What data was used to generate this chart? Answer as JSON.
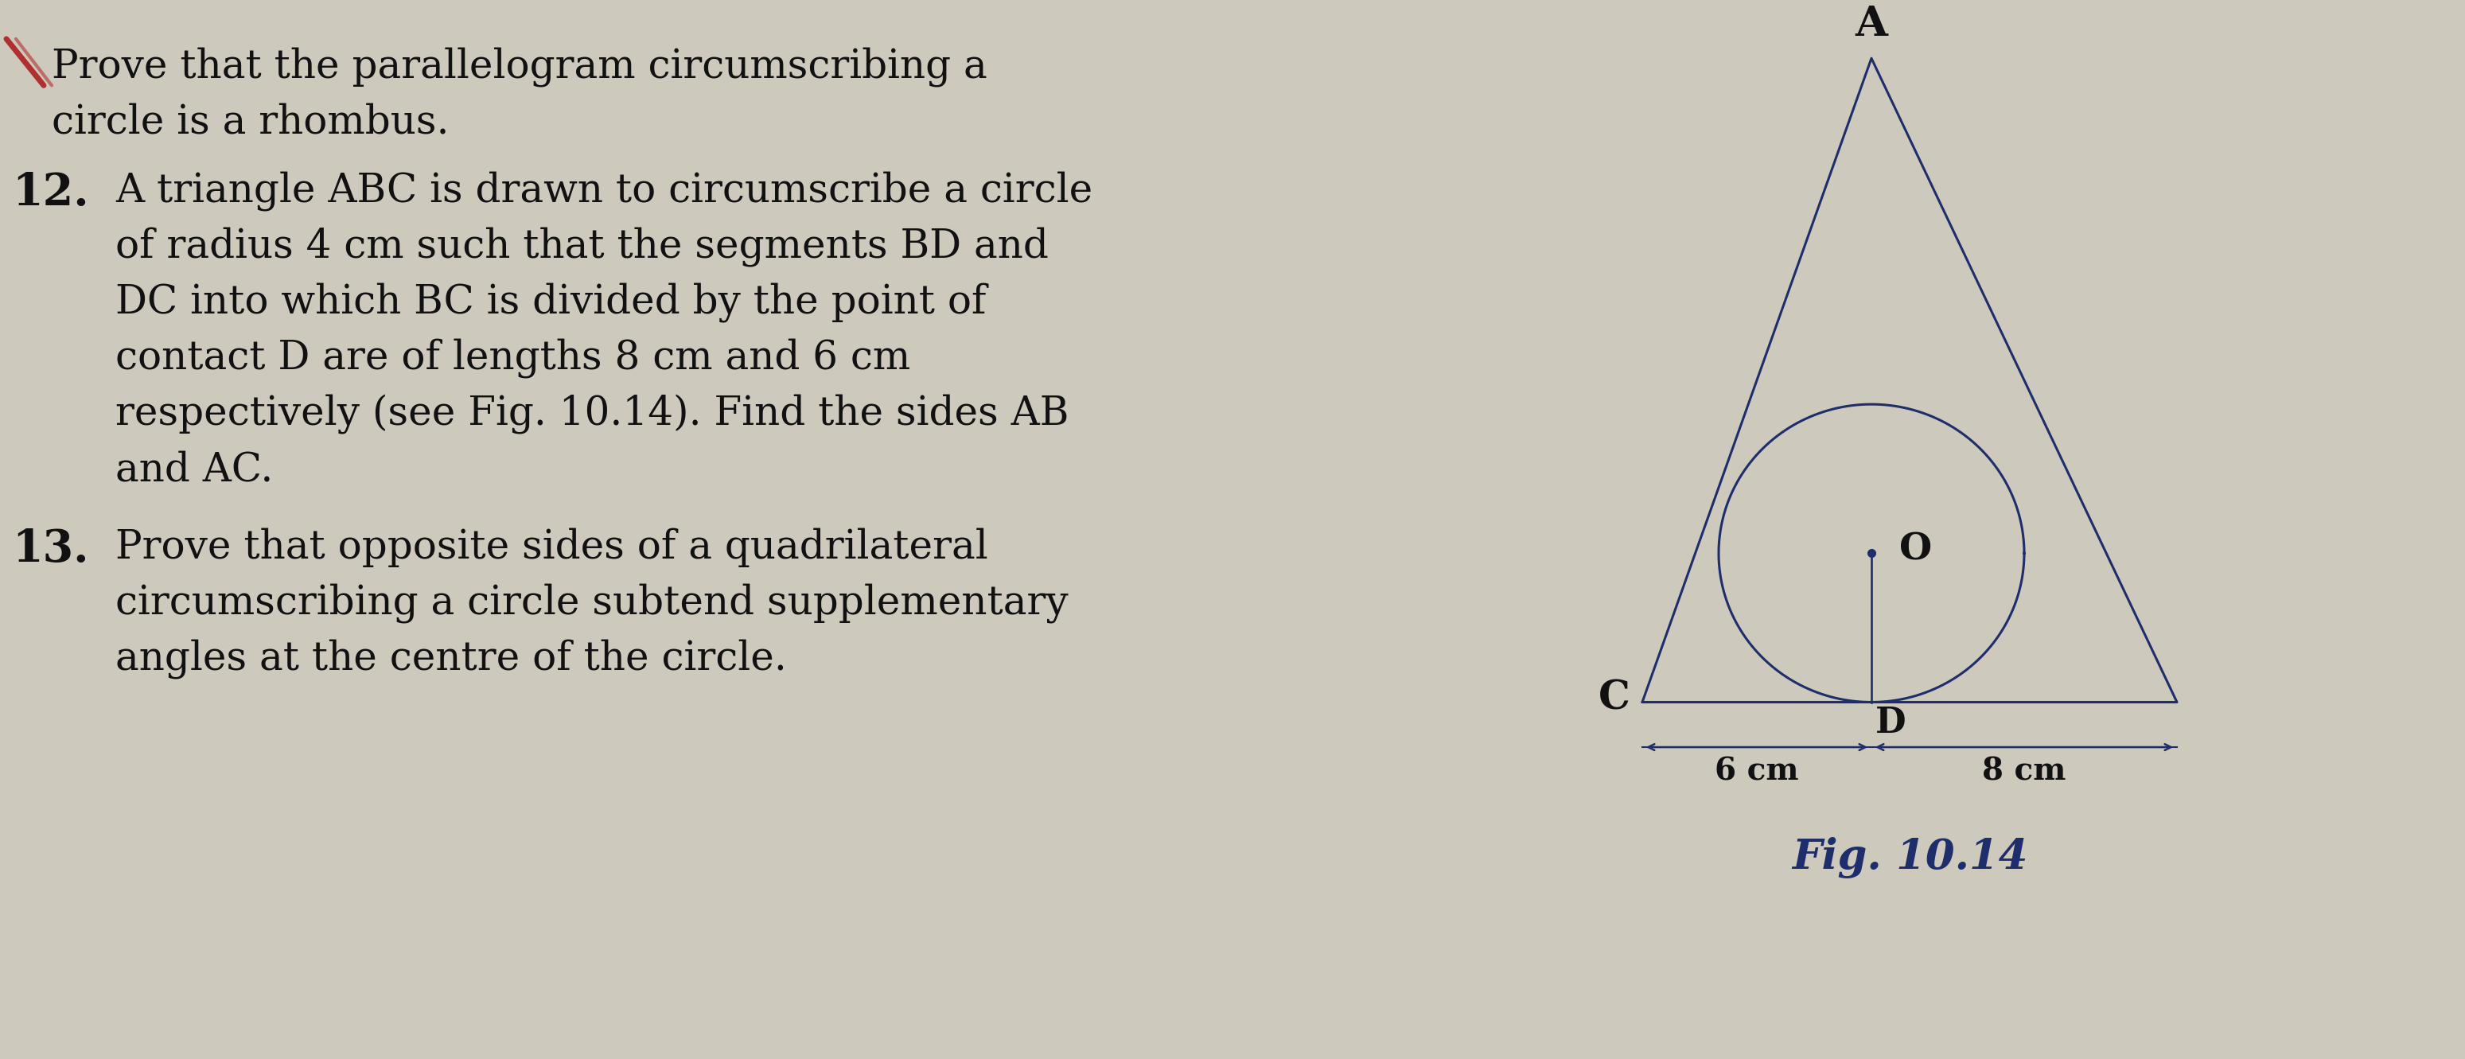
{
  "bg_color": "#cdc9bc",
  "text_color": "#111111",
  "fig_width": 30.98,
  "fig_height": 13.31,
  "line_color": "#1e2d6b",
  "fig_label": "Fig. 10.14",
  "font_size_body": 36,
  "font_size_num": 40,
  "font_size_label_geom": 34,
  "font_size_fig": 34,
  "font_size_dim": 28,
  "red_line_color": "#b03030",
  "problem11_line1": "Prove that the parallelogram circumscribing a",
  "problem11_line2": "circle is a rhombus.",
  "p12_num": "12.",
  "p12_l1": "A triangle ABC is drawn to circumscribe a circle",
  "p12_l2": "of radius 4 cm such that the segments BD and",
  "p12_l3": "DC into which BC is divided by the point of",
  "p12_l4": "contact D are of lengths 8 cm and 6 cm",
  "p12_l5": "respectively (see Fig. 10.14). Find the sides AB",
  "p12_l6": "and AC.",
  "p13_num": "13.",
  "p13_l1": "Prove that opposite sides of a quadrilateral",
  "p13_l2": "circumscribing a circle subtend supplementary",
  "p13_l3": "angles at the centre of the circle.",
  "label_A": "A",
  "label_C": "C",
  "label_O": "O",
  "label_D": "D",
  "label_6cm": "6 cm",
  "label_8cm": "8 cm",
  "xlim": [
    0,
    30.98
  ],
  "ylim": [
    0,
    13.31
  ]
}
